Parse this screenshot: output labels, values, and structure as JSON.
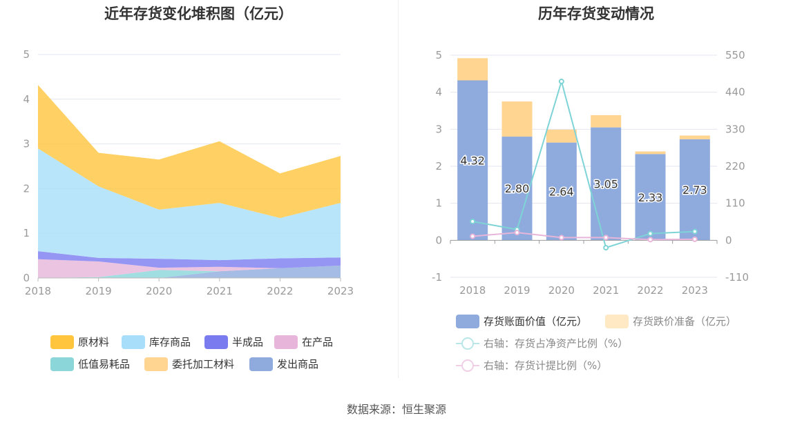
{
  "left": {
    "title": "近年存货变化堆积图（亿元）",
    "legend": [
      {
        "name": "原材料",
        "color": "#FFC53D"
      },
      {
        "name": "库存商品",
        "color": "#A8DEFA"
      },
      {
        "name": "半成品",
        "color": "#7B7BF0"
      },
      {
        "name": "在产品",
        "color": "#E6B5D9"
      },
      {
        "name": "低值易耗品",
        "color": "#8AD6D9"
      },
      {
        "name": "委托加工材料",
        "color": "#FFD591"
      },
      {
        "name": "发出商品",
        "color": "#8FABDD"
      }
    ]
  },
  "right": {
    "title": "历年存货变动情况",
    "legend": {
      "bar1": "存货账面价值（亿元）",
      "bar2": "存货跌价准备（亿元）",
      "line1": "右轴：存货占净资产比例（%）",
      "line2": "右轴：存货计提比例（%）"
    },
    "bar_labels": [
      "4.32",
      "2.80",
      "2.64",
      "3.05",
      "2.33",
      "2.73"
    ]
  },
  "source": "数据来源：恒生聚源",
  "chart_data": [
    {
      "type": "area",
      "stacked": true,
      "title": "近年存货变化堆积图（亿元）",
      "categories": [
        "2018",
        "2019",
        "2020",
        "2021",
        "2022",
        "2023"
      ],
      "ylim": [
        0,
        5
      ],
      "yticks": [
        0,
        1,
        2,
        3,
        4,
        5
      ],
      "grid": true,
      "legend_position": "bottom",
      "series": [
        {
          "name": "发出商品",
          "color": "#8FABDD",
          "values": [
            0.0,
            0.0,
            0.0,
            0.15,
            0.22,
            0.28
          ]
        },
        {
          "name": "委托加工材料",
          "color": "#FFD591",
          "values": [
            0.0,
            0.0,
            0.0,
            0.0,
            0.0,
            0.0
          ]
        },
        {
          "name": "低值易耗品",
          "color": "#8AD6D9",
          "values": [
            0.0,
            0.02,
            0.18,
            0.0,
            0.0,
            0.0
          ]
        },
        {
          "name": "在产品",
          "color": "#E6B5D9",
          "values": [
            0.42,
            0.35,
            0.05,
            0.1,
            0.0,
            0.0
          ]
        },
        {
          "name": "半成品",
          "color": "#7B7BF0",
          "values": [
            0.18,
            0.08,
            0.2,
            0.15,
            0.22,
            0.18
          ]
        },
        {
          "name": "库存商品",
          "color": "#A8DEFA",
          "values": [
            2.3,
            1.6,
            1.1,
            1.28,
            0.9,
            1.22
          ]
        },
        {
          "name": "原材料",
          "color": "#FFC53D",
          "values": [
            1.42,
            0.75,
            1.12,
            1.38,
            1.0,
            1.05
          ]
        }
      ]
    },
    {
      "type": "bar",
      "stacked": true,
      "title": "历年存货变动情况",
      "categories": [
        "2018",
        "2019",
        "2020",
        "2021",
        "2022",
        "2023"
      ],
      "ylim": [
        -1,
        5
      ],
      "yticks": [
        -1,
        0,
        1,
        2,
        3,
        4,
        5
      ],
      "y2lim": [
        -110,
        550
      ],
      "y2ticks": [
        -110,
        0,
        110,
        220,
        330,
        440,
        550
      ],
      "grid": true,
      "legend_position": "bottom",
      "series": [
        {
          "name": "存货账面价值（亿元）",
          "type": "bar",
          "color": "#8FABDD",
          "values": [
            4.32,
            2.8,
            2.64,
            3.05,
            2.33,
            2.73
          ]
        },
        {
          "name": "存货跌价准备（亿元）",
          "type": "bar",
          "color": "#FFD591",
          "values": [
            0.6,
            0.95,
            0.35,
            0.33,
            0.07,
            0.1
          ]
        },
        {
          "name": "右轴：存货占净资产比例（%）",
          "type": "line",
          "axis": "right",
          "color": "#7ED3D6",
          "values": [
            56,
            32,
            472,
            -22,
            20,
            26
          ]
        },
        {
          "name": "右轴：存货计提比例（%）",
          "type": "line",
          "axis": "right",
          "color": "#E6B5D9",
          "values": [
            12,
            23,
            8,
            8,
            2,
            3
          ]
        }
      ]
    }
  ]
}
